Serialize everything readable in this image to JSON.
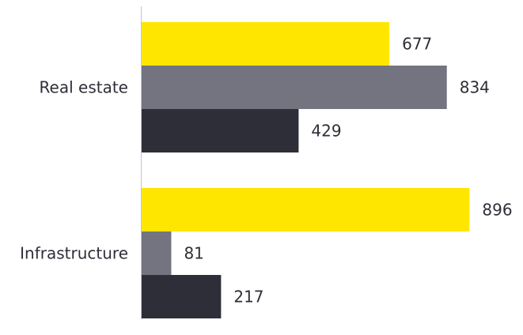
{
  "chart_data": {
    "type": "bar",
    "orientation": "horizontal",
    "categories": [
      "Real estate",
      "Infrastructure"
    ],
    "series": [
      {
        "values": [
          677,
          896
        ],
        "color": "#ffe600"
      },
      {
        "values": [
          834,
          81
        ],
        "color": "#747480"
      },
      {
        "values": [
          429,
          217
        ],
        "color": "#2e2e38"
      }
    ],
    "xlim": [
      0,
      1000
    ],
    "grid": false,
    "legend": "none",
    "data_labels": true
  }
}
